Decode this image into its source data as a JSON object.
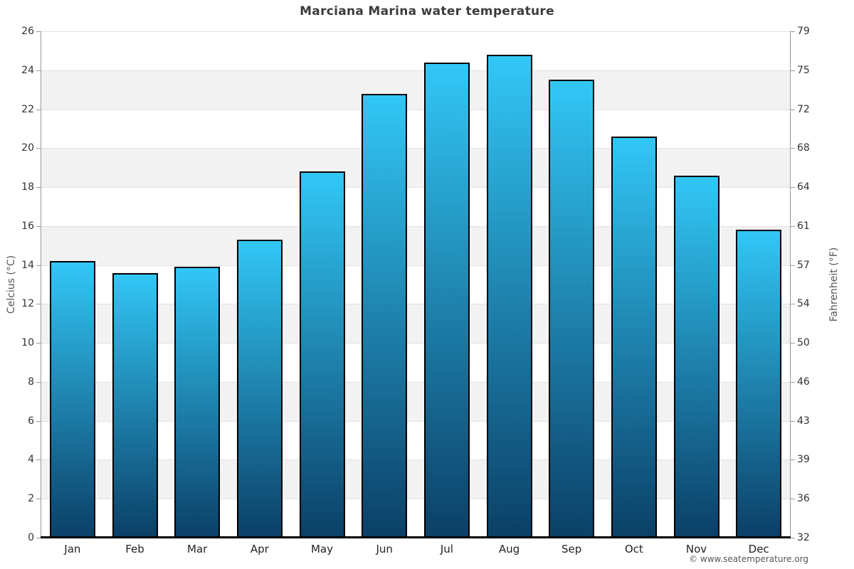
{
  "title": "Marciana Marina water temperature",
  "copyright": "© www.seatemperature.org",
  "chart_data": {
    "type": "bar",
    "title": "Marciana Marina water temperature",
    "categories": [
      "Jan",
      "Feb",
      "Mar",
      "Apr",
      "May",
      "Jun",
      "Jul",
      "Aug",
      "Sep",
      "Oct",
      "Nov",
      "Dec"
    ],
    "values": [
      14.2,
      13.6,
      13.9,
      15.3,
      18.8,
      22.8,
      24.4,
      24.8,
      23.5,
      20.6,
      18.6,
      15.8
    ],
    "values_unit": "°C",
    "xlabel": "",
    "ylabel_left": "Celcius (°C)",
    "ylabel_right": "Fahrenheit (°F)",
    "ylim_left": [
      0,
      26
    ],
    "yticks_left": [
      0,
      2,
      4,
      6,
      8,
      10,
      12,
      14,
      16,
      18,
      20,
      22,
      24,
      26
    ],
    "yticks_right_labels": [
      "32",
      "36",
      "39",
      "43",
      "46",
      "50",
      "54",
      "57",
      "61",
      "64",
      "68",
      "72",
      "75",
      "79"
    ],
    "legend": "none",
    "grid": "horizontal gridlines with alternating shaded bands",
    "colors": {
      "bar_gradient_top": "#32c7f6",
      "bar_gradient_bottom": "#0b4067",
      "bar_border": "#000000",
      "band_shaded": "#f2f2f2",
      "band_plain": "#ffffff",
      "gridline": "#e2e2e2",
      "axis_spine": "#999999",
      "x_axis_line": "#000000",
      "title_text": "#3c3c3c",
      "tick_text": "#333333"
    }
  }
}
